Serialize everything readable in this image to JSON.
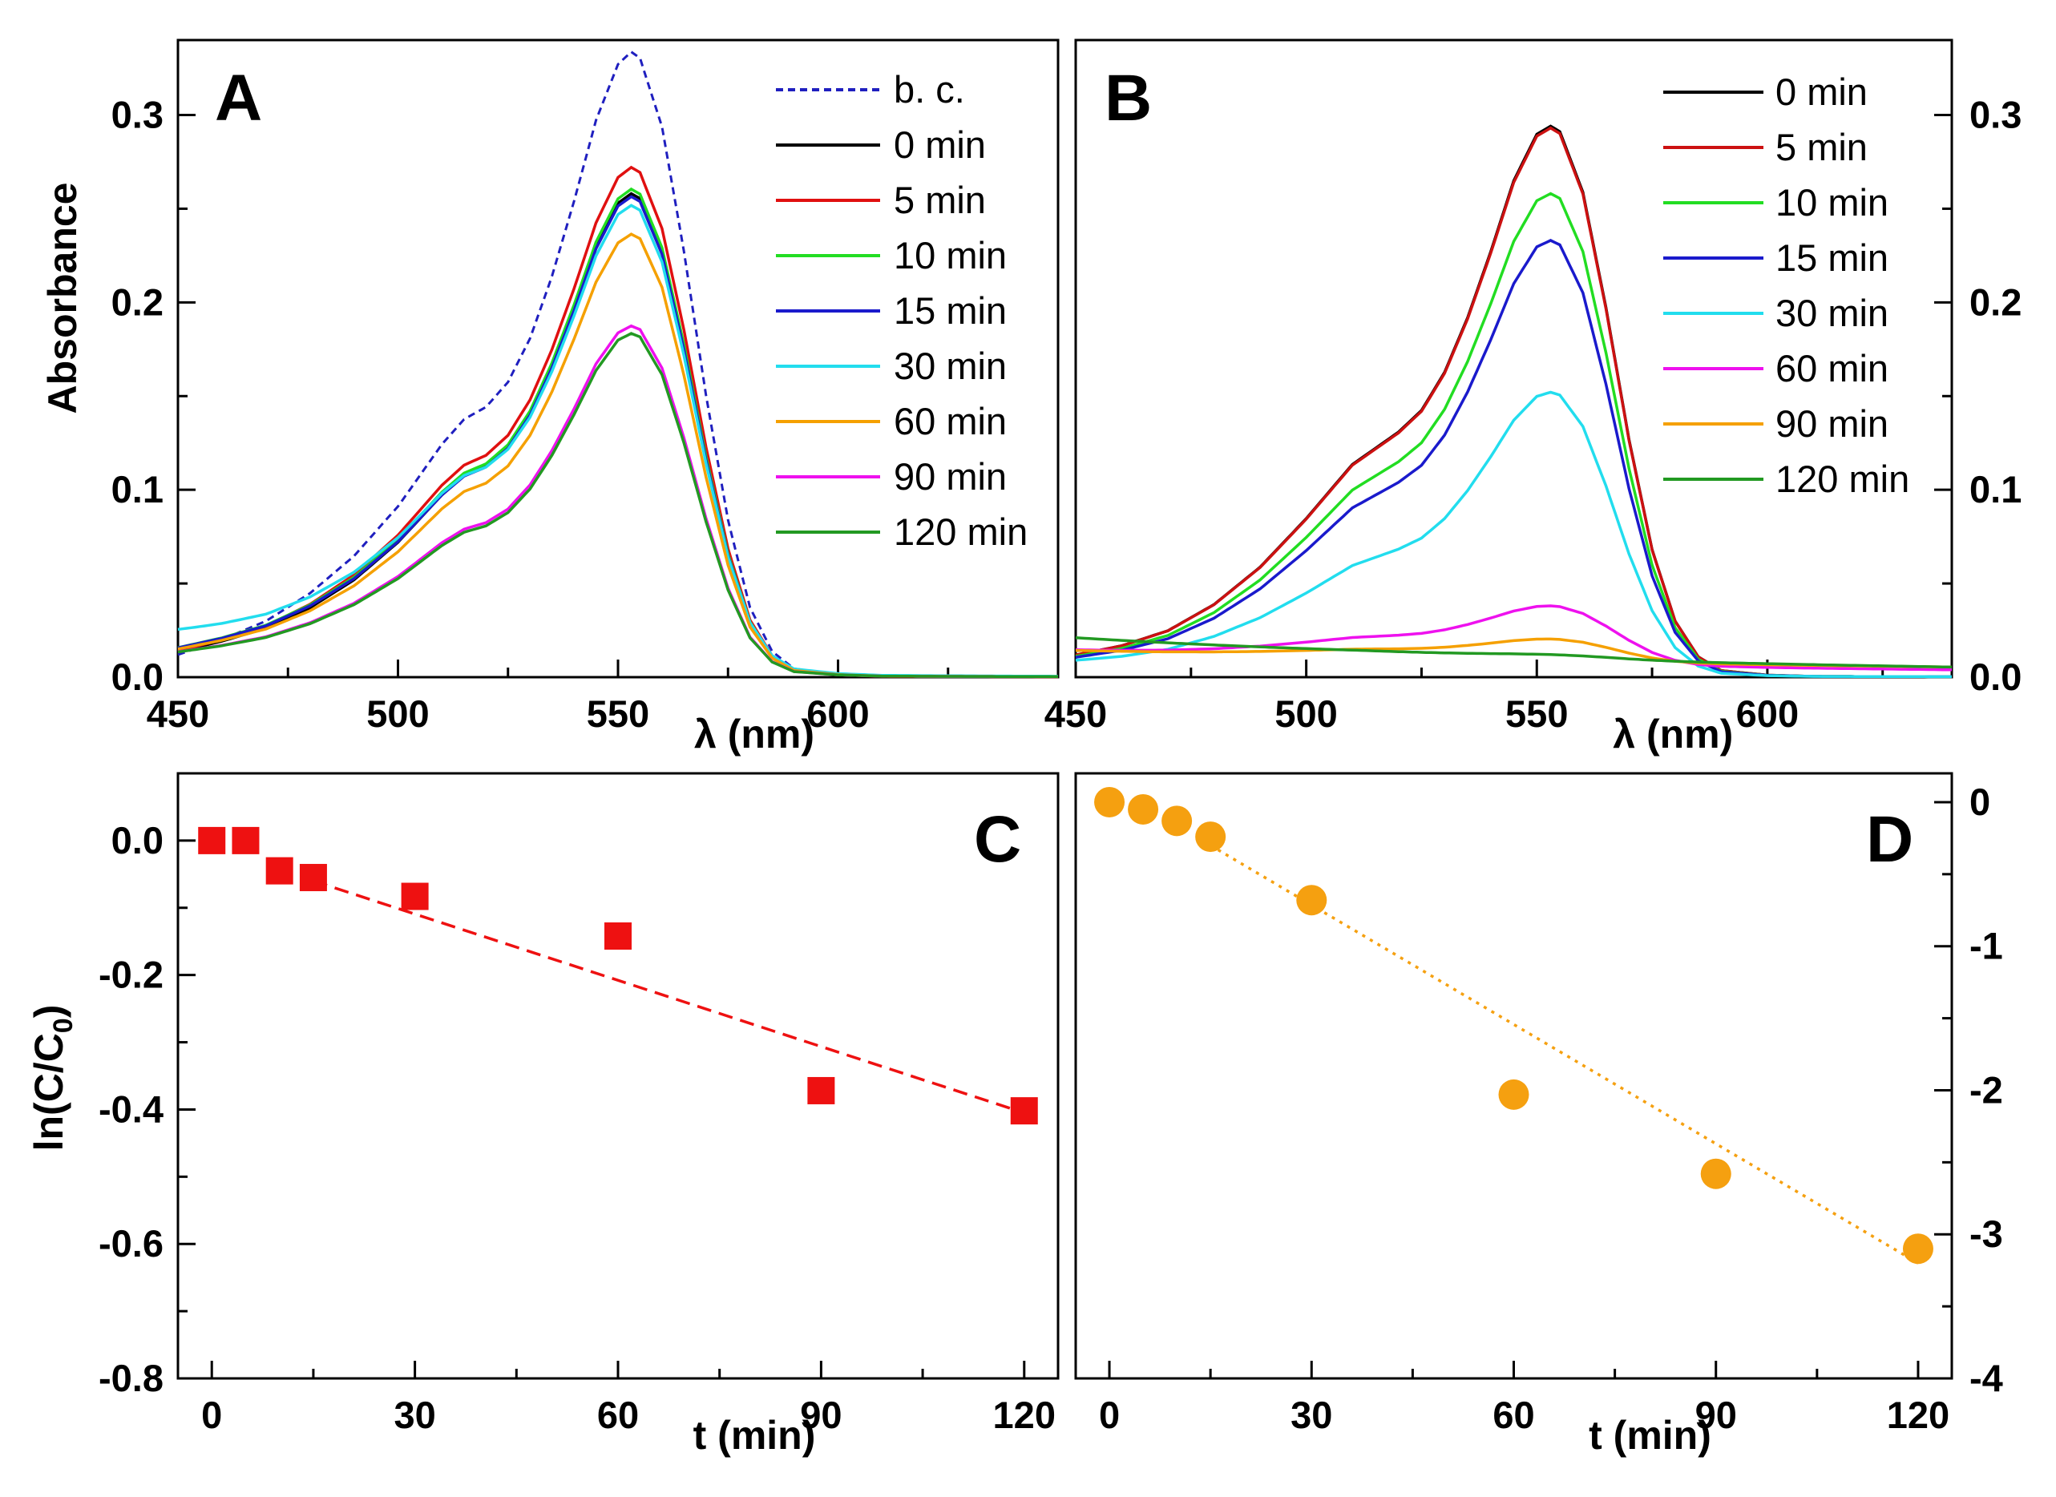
{
  "chart_data": [
    {
      "panel": "A",
      "type": "line",
      "title": "",
      "xlabel": "λ (nm)",
      "ylabel": "Absorbance",
      "xlim": [
        450,
        650
      ],
      "ylim": [
        0,
        0.34
      ],
      "xticks": [
        450,
        500,
        550,
        600
      ],
      "xtick_labels": [
        "450",
        "500",
        "550",
        "600"
      ],
      "yticks": [
        0.0,
        0.1,
        0.2,
        0.3
      ],
      "ytick_labels": [
        "0.0",
        "0.1",
        "0.2",
        "0.3"
      ],
      "legend": "top-right",
      "shape": {
        "x": [
          450,
          460,
          470,
          480,
          490,
          500,
          505,
          510,
          515,
          520,
          525,
          530,
          535,
          540,
          545,
          550,
          553,
          555,
          560,
          565,
          570,
          575,
          580,
          585,
          590,
          600,
          610,
          620,
          650
        ],
        "rel": [
          0.03,
          0.055,
          0.085,
          0.13,
          0.19,
          0.27,
          0.32,
          0.37,
          0.41,
          0.43,
          0.47,
          0.54,
          0.64,
          0.76,
          0.89,
          0.98,
          1.0,
          0.99,
          0.88,
          0.68,
          0.45,
          0.25,
          0.11,
          0.04,
          0.012,
          0.003,
          0.0,
          0.0,
          0.0
        ]
      },
      "series": [
        {
          "name": "b. c.",
          "color": "#1f1fbf",
          "dashed": true,
          "peak": 0.333,
          "base": 0.002,
          "base_decay": 100
        },
        {
          "name": "0 min",
          "color": "#000000",
          "peak": 0.257,
          "base": 0.006,
          "base_decay": 60
        },
        {
          "name": "5 min",
          "color": "#e01010",
          "peak": 0.271,
          "base": 0.006,
          "base_decay": 60
        },
        {
          "name": "10 min",
          "color": "#22dd22",
          "peak": 0.259,
          "base": 0.008,
          "base_decay": 60
        },
        {
          "name": "15 min",
          "color": "#1a1acc",
          "peak": 0.255,
          "base": 0.008,
          "base_decay": 60
        },
        {
          "name": "30 min",
          "color": "#22ddee",
          "peak": 0.249,
          "base": 0.018,
          "base_decay": 55
        },
        {
          "name": "60 min",
          "color": "#f5a000",
          "peak": 0.235,
          "base": 0.008,
          "base_decay": 60
        },
        {
          "name": "90 min",
          "color": "#ee11ee",
          "peak": 0.186,
          "base": 0.008,
          "base_decay": 60
        },
        {
          "name": "120 min",
          "color": "#229922",
          "peak": 0.182,
          "base": 0.008,
          "base_decay": 60
        }
      ]
    },
    {
      "panel": "B",
      "type": "line",
      "title": "",
      "xlabel": "λ (nm)",
      "ylabel": "",
      "xlim": [
        450,
        640
      ],
      "ylim": [
        0,
        0.34
      ],
      "xticks": [
        450,
        500,
        550,
        600
      ],
      "xtick_labels": [
        "450",
        "500",
        "550",
        "600"
      ],
      "yticks": [
        0.0,
        0.1,
        0.2,
        0.3
      ],
      "ytick_labels": [
        "0.0",
        "0.1",
        "0.2",
        "0.3"
      ],
      "legend": "top-right",
      "shape": {
        "x": [
          450,
          460,
          470,
          480,
          490,
          500,
          505,
          510,
          515,
          520,
          525,
          530,
          535,
          540,
          545,
          550,
          553,
          555,
          560,
          565,
          570,
          575,
          580,
          585,
          590,
          600,
          610,
          620,
          640
        ],
        "rel": [
          0.02,
          0.04,
          0.07,
          0.12,
          0.19,
          0.28,
          0.33,
          0.38,
          0.41,
          0.44,
          0.48,
          0.55,
          0.65,
          0.77,
          0.9,
          0.985,
          1.0,
          0.99,
          0.88,
          0.67,
          0.43,
          0.23,
          0.1,
          0.035,
          0.01,
          0.002,
          0.0,
          0.0,
          0.0
        ]
      },
      "series": [
        {
          "name": "0 min",
          "color": "#000000",
          "peak": 0.293,
          "base": 0.006,
          "base_decay": 60
        },
        {
          "name": "5 min",
          "color": "#cc1111",
          "peak": 0.292,
          "base": 0.006,
          "base_decay": 60
        },
        {
          "name": "10 min",
          "color": "#22dd22",
          "peak": 0.257,
          "base": 0.006,
          "base_decay": 60
        },
        {
          "name": "15 min",
          "color": "#1a1acc",
          "peak": 0.232,
          "base": 0.006,
          "base_decay": 60
        },
        {
          "name": "30 min",
          "color": "#22ddee",
          "peak": 0.151,
          "base": 0.006,
          "base_decay": 60
        },
        {
          "name": "60 min",
          "color": "#ee11ee",
          "peak": 0.031,
          "base": 0.014,
          "base_decay": 150
        },
        {
          "name": "90 min",
          "color": "#f5a000",
          "peak": 0.012,
          "base": 0.014,
          "base_decay": 200
        },
        {
          "name": "120 min",
          "color": "#229922",
          "peak": 0.002,
          "base": 0.021,
          "base_decay": 140
        }
      ]
    },
    {
      "panel": "C",
      "type": "scatter",
      "title": "",
      "xlabel": "t (min)",
      "ylabel": "ln(C/C0)",
      "ylabel_main": "ln(C/C",
      "ylabel_sub": "0",
      "ylabel_close": ")",
      "xlim": [
        -5,
        125
      ],
      "ylim": [
        -0.8,
        0.1
      ],
      "xticks": [
        0,
        30,
        60,
        90,
        120
      ],
      "xtick_labels": [
        "0",
        "30",
        "60",
        "90",
        "120"
      ],
      "yticks": [
        0.0,
        -0.2,
        -0.4,
        -0.6,
        -0.8
      ],
      "ytick_labels": [
        "0.0",
        "-0.2",
        "-0.4",
        "-0.6",
        "-0.8"
      ],
      "marker": "square",
      "color": "#ee1111",
      "x": [
        0,
        5,
        10,
        15,
        30,
        60,
        90,
        120
      ],
      "y": [
        0.0,
        0.0,
        -0.045,
        -0.055,
        -0.083,
        -0.142,
        -0.372,
        -0.402
      ],
      "fit": {
        "x": [
          15,
          120
        ],
        "y": [
          -0.06,
          -0.405
        ],
        "style": "dashed"
      }
    },
    {
      "panel": "D",
      "type": "scatter",
      "title": "",
      "xlabel": "t (min)",
      "ylabel": "",
      "xlim": [
        -5,
        125
      ],
      "ylim": [
        -4,
        0.2
      ],
      "xticks": [
        0,
        30,
        60,
        90,
        120
      ],
      "xtick_labels": [
        "0",
        "30",
        "60",
        "90",
        "120"
      ],
      "yticks": [
        0,
        -1,
        -2,
        -3,
        -4
      ],
      "ytick_labels": [
        "0",
        "-1",
        "-2",
        "-3",
        "-4"
      ],
      "marker": "circle",
      "color": "#f5a010",
      "x": [
        0,
        5,
        10,
        15,
        30,
        60,
        90,
        120
      ],
      "y": [
        0.0,
        -0.05,
        -0.13,
        -0.24,
        -0.68,
        -2.03,
        -2.58,
        -3.1
      ],
      "fit": {
        "x": [
          15,
          120
        ],
        "y": [
          -0.3,
          -3.2
        ],
        "style": "dotted"
      }
    }
  ]
}
